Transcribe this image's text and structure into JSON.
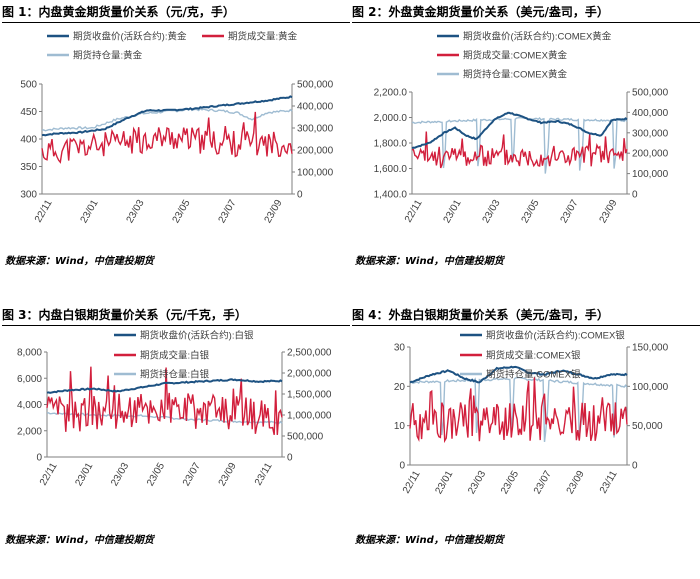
{
  "colors": {
    "price": "#1d5282",
    "volume": "#d21f3c",
    "oi": "#9fbcd2",
    "axis": "#7f7f7f",
    "text": "#404040"
  },
  "chart_data": [
    {
      "type": "line",
      "title": "图 1：内盘黄金期货量价关系（元/克，手）",
      "source": "数据来源：Wind，中信建投期货",
      "left_axis": {
        "ticks": [
          "300",
          "350",
          "400",
          "450",
          "500"
        ],
        "range": [
          300,
          500
        ]
      },
      "right_axis": {
        "ticks": [
          "0",
          "100,000",
          "200,000",
          "300,000",
          "400,000",
          "500,000"
        ],
        "range": [
          0,
          500000
        ]
      },
      "x_ticks": [
        "22/11",
        "23/01",
        "23/03",
        "23/05",
        "23/07",
        "23/09"
      ],
      "series": [
        {
          "name": "期货收盘价(活跃合约):黄金",
          "axis": "left",
          "points": [
            [
              0,
              407
            ],
            [
              0.06,
              410
            ],
            [
              0.15,
              412
            ],
            [
              0.25,
              418
            ],
            [
              0.35,
              440
            ],
            [
              0.42,
              452
            ],
            [
              0.5,
              452
            ],
            [
              0.6,
              455
            ],
            [
              0.7,
              460
            ],
            [
              0.8,
              465
            ],
            [
              0.9,
              470
            ],
            [
              1,
              477
            ]
          ]
        },
        {
          "name": "期货成交量:黄金",
          "axis": "right",
          "base": 200000,
          "amp": 60000,
          "seed": 11,
          "points": [
            [
              0,
              190000
            ],
            [
              0.3,
              230000
            ],
            [
              0.5,
              260000
            ],
            [
              0.7,
              230000
            ],
            [
              1,
              230000
            ]
          ]
        },
        {
          "name": "期货持仓量:黄金",
          "axis": "right",
          "points": [
            [
              0,
              290000
            ],
            [
              0.1,
              300000
            ],
            [
              0.2,
              300000
            ],
            [
              0.3,
              340000
            ],
            [
              0.4,
              365000
            ],
            [
              0.5,
              375000
            ],
            [
              0.6,
              385000
            ],
            [
              0.7,
              380000
            ],
            [
              0.78,
              370000
            ],
            [
              0.84,
              340000
            ],
            [
              0.9,
              370000
            ],
            [
              1,
              380000
            ]
          ]
        }
      ]
    },
    {
      "type": "line",
      "title": "图 2：外盘黄金期货量价关系（美元/盎司，手）",
      "source": "数据来源：Wind，中信建投期货",
      "left_axis": {
        "ticks": [
          "1,400.0",
          "1,600.0",
          "1,800.0",
          "2,000.0",
          "2,200.0"
        ],
        "range": [
          1400,
          2200
        ]
      },
      "right_axis": {
        "ticks": [
          "0",
          "100,000",
          "200,000",
          "300,000",
          "400,000",
          "500,000"
        ],
        "range": [
          0,
          500000
        ]
      },
      "x_ticks": [
        "22/11",
        "23/01",
        "23/03",
        "23/05",
        "23/07",
        "23/09"
      ],
      "series": [
        {
          "name": "期货收盘价(活跃合约):COMEX黄金",
          "axis": "left",
          "points": [
            [
              0,
              1760
            ],
            [
              0.08,
              1800
            ],
            [
              0.15,
              1880
            ],
            [
              0.2,
              1920
            ],
            [
              0.25,
              1860
            ],
            [
              0.3,
              1830
            ],
            [
              0.38,
              1980
            ],
            [
              0.45,
              2040
            ],
            [
              0.52,
              2000
            ],
            [
              0.6,
              1960
            ],
            [
              0.68,
              1970
            ],
            [
              0.75,
              1940
            ],
            [
              0.82,
              1880
            ],
            [
              0.88,
              1860
            ],
            [
              0.93,
              1980
            ],
            [
              1,
              1990
            ]
          ]
        },
        {
          "name": "期货成交量:COMEX黄金",
          "axis": "right",
          "base": 180000,
          "amp": 55000,
          "seed": 23,
          "points": [
            [
              0,
              180000
            ],
            [
              1,
              190000
            ]
          ]
        },
        {
          "name": "期货持仓量:COMEX黄金",
          "axis": "right",
          "periodic": true,
          "points": [
            [
              0,
              350000
            ],
            [
              0.5,
              370000
            ],
            [
              1,
              360000
            ]
          ]
        }
      ]
    },
    {
      "type": "line",
      "title": "图 3：内盘白银期货量价关系（元/千克，手）",
      "source": "数据来源：Wind，中信建投期货",
      "left_axis": {
        "ticks": [
          "0",
          "2,000",
          "4,000",
          "6,000",
          "8,000"
        ],
        "range": [
          0,
          8000
        ]
      },
      "right_axis": {
        "ticks": [
          "0",
          "500,000",
          "1,000,000",
          "1,500,000",
          "2,000,000",
          "2,500,000"
        ],
        "range": [
          0,
          2500000
        ]
      },
      "x_ticks": [
        "22/11",
        "23/01",
        "23/03",
        "23/05",
        "23/07",
        "23/09",
        "23/11"
      ],
      "series": [
        {
          "name": "期货收盘价(活跃合约):白银",
          "axis": "left",
          "points": [
            [
              0,
              4900
            ],
            [
              0.1,
              5100
            ],
            [
              0.2,
              5200
            ],
            [
              0.3,
              5000
            ],
            [
              0.4,
              5300
            ],
            [
              0.5,
              5600
            ],
            [
              0.6,
              5700
            ],
            [
              0.7,
              5800
            ],
            [
              0.8,
              5900
            ],
            [
              0.9,
              5750
            ],
            [
              1,
              5800
            ]
          ]
        },
        {
          "name": "期货成交量:白银",
          "axis": "right",
          "base": 1000000,
          "amp": 450000,
          "seed": 37,
          "points": [
            [
              0,
              1000000
            ],
            [
              0.5,
              1200000
            ],
            [
              1,
              900000
            ]
          ]
        },
        {
          "name": "期货持仓量:白银",
          "axis": "right",
          "points": [
            [
              0,
              1050000
            ],
            [
              0.2,
              1000000
            ],
            [
              0.4,
              980000
            ],
            [
              0.6,
              900000
            ],
            [
              0.8,
              850000
            ],
            [
              1,
              820000
            ]
          ]
        }
      ]
    },
    {
      "type": "line",
      "title": "图 4：外盘白银期货量价关系（美元/盎司，手）",
      "source": "数据来源：Wind，中信建投期货",
      "left_axis": {
        "ticks": [
          "0",
          "10",
          "20",
          "30"
        ],
        "range": [
          0,
          30
        ]
      },
      "right_axis": {
        "ticks": [
          "0",
          "50,000",
          "100,000",
          "150,000"
        ],
        "range": [
          0,
          150000
        ]
      },
      "x_ticks": [
        "22/11",
        "23/01",
        "23/03",
        "23/05",
        "23/07",
        "23/09",
        "23/11"
      ],
      "series": [
        {
          "name": "期货收盘价(活跃合约):COMEX银",
          "axis": "left",
          "points": [
            [
              0,
              21
            ],
            [
              0.1,
              23
            ],
            [
              0.18,
              24
            ],
            [
              0.25,
              22
            ],
            [
              0.32,
              21
            ],
            [
              0.4,
              24.5
            ],
            [
              0.48,
              25
            ],
            [
              0.55,
              23.5
            ],
            [
              0.62,
              23
            ],
            [
              0.7,
              24
            ],
            [
              0.78,
              23
            ],
            [
              0.85,
              22
            ],
            [
              0.92,
              23
            ],
            [
              1,
              23
            ]
          ]
        },
        {
          "name": "期货成交量:COMEX银",
          "axis": "right",
          "base": 55000,
          "amp": 25000,
          "seed": 53,
          "points": [
            [
              0,
              55000
            ],
            [
              1,
              55000
            ]
          ]
        },
        {
          "name": "期货持仓量:COMEX银",
          "axis": "right",
          "periodic": true,
          "points": [
            [
              0,
              105000
            ],
            [
              0.5,
              110000
            ],
            [
              1,
              100000
            ]
          ]
        }
      ]
    }
  ]
}
